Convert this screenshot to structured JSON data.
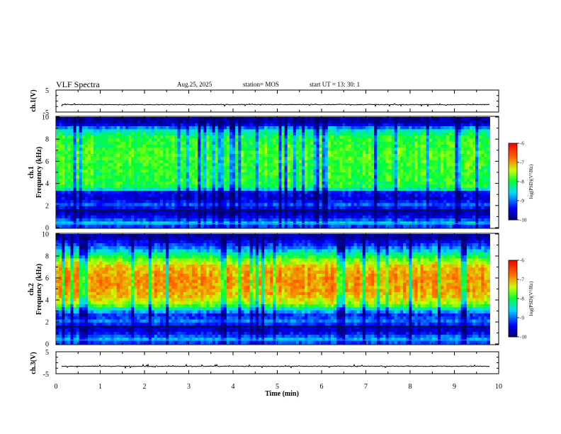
{
  "header": {
    "title": "VLF Spectra",
    "date": "Aug.25, 2025",
    "station": "station= MOS",
    "start": "start  UT  =   13: 30: 1"
  },
  "chart_data": [
    {
      "id": "ch1-waveform",
      "type": "line",
      "ylabel": "ch.1(V)",
      "ylim": [
        -5,
        5
      ],
      "yticks": [
        "5",
        "-5"
      ],
      "baseline": -1.6,
      "xlim": [
        0,
        9.8
      ]
    },
    {
      "id": "ch1-spectrogram",
      "type": "heatmap",
      "ylabel_line1": "ch.1",
      "ylabel_line2": "Frequency  (kHz)",
      "ylim": [
        0,
        10
      ],
      "yticks": [
        "0",
        "2",
        "4",
        "6",
        "8",
        "10"
      ],
      "xlim": [
        0,
        9.8
      ],
      "profile": [
        [
          0,
          -9.5
        ],
        [
          0.4,
          -8.6
        ],
        [
          0.8,
          -9.3
        ],
        [
          1.2,
          -9.6
        ],
        [
          1.6,
          -9.8
        ],
        [
          2.0,
          -9.0
        ],
        [
          2.6,
          -9.6
        ],
        [
          3.2,
          -9.4
        ],
        [
          3.6,
          -8.0
        ],
        [
          4.5,
          -7.9
        ],
        [
          5.5,
          -7.9
        ],
        [
          6.5,
          -7.8
        ],
        [
          7.5,
          -7.9
        ],
        [
          8.3,
          -8.0
        ],
        [
          8.8,
          -8.5
        ],
        [
          9.4,
          -9.7
        ],
        [
          10,
          -9.9
        ]
      ],
      "colorbar": {
        "label": "log(PSD)(V²/Hz)",
        "min": -10,
        "max": -6,
        "ticks": [
          "-6",
          "-7",
          "-8",
          "-9",
          "-10"
        ]
      }
    },
    {
      "id": "ch2-spectrogram",
      "type": "heatmap",
      "ylabel_line1": "ch.2",
      "ylabel_line2": "Frequency  (kHz)",
      "ylim": [
        0,
        10
      ],
      "yticks": [
        "0",
        "2",
        "4",
        "6",
        "8",
        "10"
      ],
      "xlim": [
        0,
        9.8
      ],
      "profile": [
        [
          0,
          -9.4
        ],
        [
          0.4,
          -8.7
        ],
        [
          0.8,
          -9.2
        ],
        [
          1.2,
          -9.6
        ],
        [
          1.6,
          -9.6
        ],
        [
          2.0,
          -8.9
        ],
        [
          2.6,
          -9.3
        ],
        [
          3.0,
          -8.7
        ],
        [
          3.6,
          -7.6
        ],
        [
          4.4,
          -7.1
        ],
        [
          5.0,
          -6.95
        ],
        [
          6.0,
          -6.9
        ],
        [
          7.0,
          -7.1
        ],
        [
          7.6,
          -7.6
        ],
        [
          8.2,
          -8.3
        ],
        [
          9.0,
          -9.2
        ],
        [
          9.6,
          -9.7
        ],
        [
          10,
          -9.9
        ]
      ],
      "colorbar": {
        "label": "log(PSD)(V²/Hz)",
        "min": -10,
        "max": -6,
        "ticks": [
          "-6",
          "-7",
          "-8",
          "-9",
          "-10"
        ]
      }
    },
    {
      "id": "ch3-waveform",
      "type": "line",
      "ylabel": "ch.3(V)",
      "ylim": [
        -5,
        5
      ],
      "yticks": [
        "5",
        "-5"
      ],
      "baseline": -1.6,
      "xlim": [
        0,
        9.8
      ]
    },
    {
      "id": "time-axis",
      "type": "axis",
      "xlabel": "Time  (min)",
      "xlim": [
        0,
        10
      ],
      "xticks": [
        "0",
        "1",
        "2",
        "3",
        "4",
        "5",
        "6",
        "7",
        "8",
        "9",
        "10"
      ]
    }
  ]
}
